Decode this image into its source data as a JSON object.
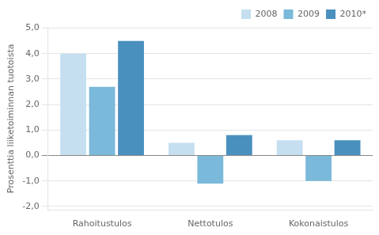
{
  "chart_data": {
    "type": "bar",
    "categories": [
      "Rahoitustulos",
      "Nettotulos",
      "Kokonaistulos"
    ],
    "series": [
      {
        "name": "2008",
        "color": "#c5dff0",
        "values": [
          4.0,
          0.5,
          0.6
        ]
      },
      {
        "name": "2009",
        "color": "#7ab9d9",
        "values": [
          2.7,
          -1.1,
          -1.0
        ]
      },
      {
        "name": "2010*",
        "color": "#4a90bf",
        "values": [
          4.5,
          0.8,
          0.6
        ]
      }
    ],
    "ylabel": "Prosenttia liiketoiminnan tuotoista",
    "ylim": [
      -2.15,
      5.05
    ],
    "yticks": [
      {
        "value": -2.0,
        "label": "-2,0"
      },
      {
        "value": -1.0,
        "label": "-1,0"
      },
      {
        "value": 0.0,
        "label": "0,0"
      },
      {
        "value": 1.0,
        "label": "1,0"
      },
      {
        "value": 2.0,
        "label": "2,0"
      },
      {
        "value": 3.0,
        "label": "3,0"
      },
      {
        "value": 4.0,
        "label": "4,0"
      },
      {
        "value": 5.0,
        "label": "5,0"
      }
    ],
    "grid": true,
    "legend": "upper right"
  }
}
